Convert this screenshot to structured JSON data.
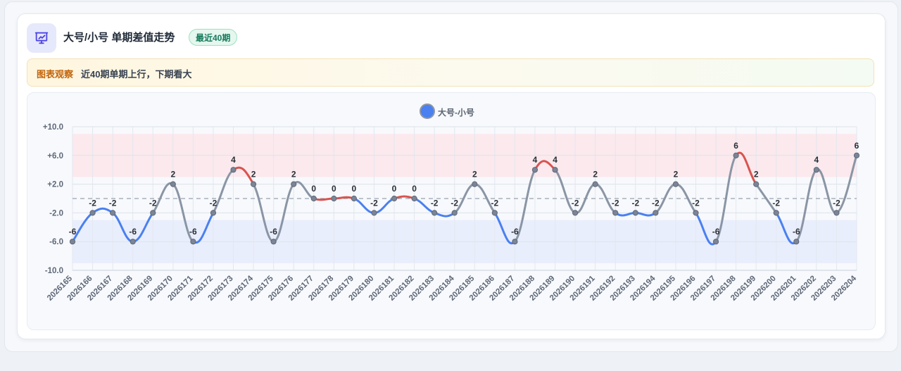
{
  "header": {
    "title": "大号/小号 单期差值走势",
    "badge": "最近40期",
    "icon": "chart-presentation-icon"
  },
  "observation": {
    "label": "图表观察",
    "text": "近40期单期上行，下期看大"
  },
  "colors": {
    "accent": "#4a80f0",
    "up": "#d9534f",
    "down": "#4a80f0",
    "flat": "#8a95a5",
    "high_band": "#fbe6ea",
    "low_band": "#e6ecfb"
  },
  "chart_data": {
    "type": "line",
    "legend": "大号-小号",
    "legend_position": "top-center",
    "categories": [
      "2026165",
      "2026166",
      "2026167",
      "2026168",
      "2026169",
      "2026170",
      "2026171",
      "2026172",
      "2026173",
      "2026174",
      "2026175",
      "2026176",
      "2026177",
      "2026178",
      "2026179",
      "2026180",
      "2026181",
      "2026182",
      "2026183",
      "2026184",
      "2026185",
      "2026186",
      "2026187",
      "2026188",
      "2026189",
      "2026190",
      "2026191",
      "2026192",
      "2026193",
      "2026194",
      "2026195",
      "2026196",
      "2026197",
      "2026198",
      "2026199",
      "2026200",
      "2026201",
      "2026202",
      "2026203",
      "2026204"
    ],
    "series": [
      {
        "name": "大号-小号",
        "values": [
          -6,
          -2,
          -2,
          -6,
          -2,
          2,
          -6,
          -2,
          4,
          2,
          -6,
          2,
          0,
          0,
          0,
          -2,
          0,
          0,
          -2,
          -2,
          2,
          -2,
          -6,
          4,
          4,
          -2,
          2,
          -2,
          -2,
          -2,
          2,
          -2,
          -6,
          6,
          2,
          -2,
          -6,
          4,
          -2,
          6
        ]
      }
    ],
    "ylim": [
      -10,
      10
    ],
    "yticks": [
      10,
      6,
      2,
      -2,
      -6,
      -10
    ],
    "ytick_labels": [
      "+10.0",
      "+6.0",
      "+2.0",
      "-2.0",
      "-6.0",
      "-10.0"
    ],
    "bands": [
      {
        "from": 3,
        "to": 9,
        "color": "#fbe6ea"
      },
      {
        "from": -9,
        "to": -3,
        "color": "#e6ecfb"
      }
    ],
    "reference_line": 0,
    "grid": true
  }
}
